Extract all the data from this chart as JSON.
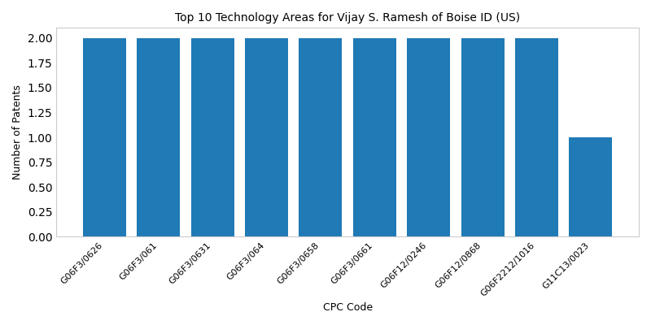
{
  "title": "Top 10 Technology Areas for Vijay S. Ramesh of Boise ID (US)",
  "xlabel": "CPC Code",
  "ylabel": "Number of Patents",
  "categories": [
    "G06F3/0626",
    "G06F3/061",
    "G06F3/0631",
    "G06F3/064",
    "G06F3/0658",
    "G06F3/0661",
    "G06F12/0246",
    "G06F12/0868",
    "G06F2212/1016",
    "G11C13/0023"
  ],
  "values": [
    2,
    2,
    2,
    2,
    2,
    2,
    2,
    2,
    2,
    1
  ],
  "bar_color": "#1f7ab5",
  "ylim": [
    0,
    2.1
  ],
  "yticks": [
    0.0,
    0.25,
    0.5,
    0.75,
    1.0,
    1.25,
    1.5,
    1.75,
    2.0
  ],
  "figsize": [
    8.0,
    4.0
  ],
  "dpi": 100,
  "title_fontsize": 10,
  "label_fontsize": 9,
  "tick_fontsize": 8,
  "background_color": "#ffffff"
}
